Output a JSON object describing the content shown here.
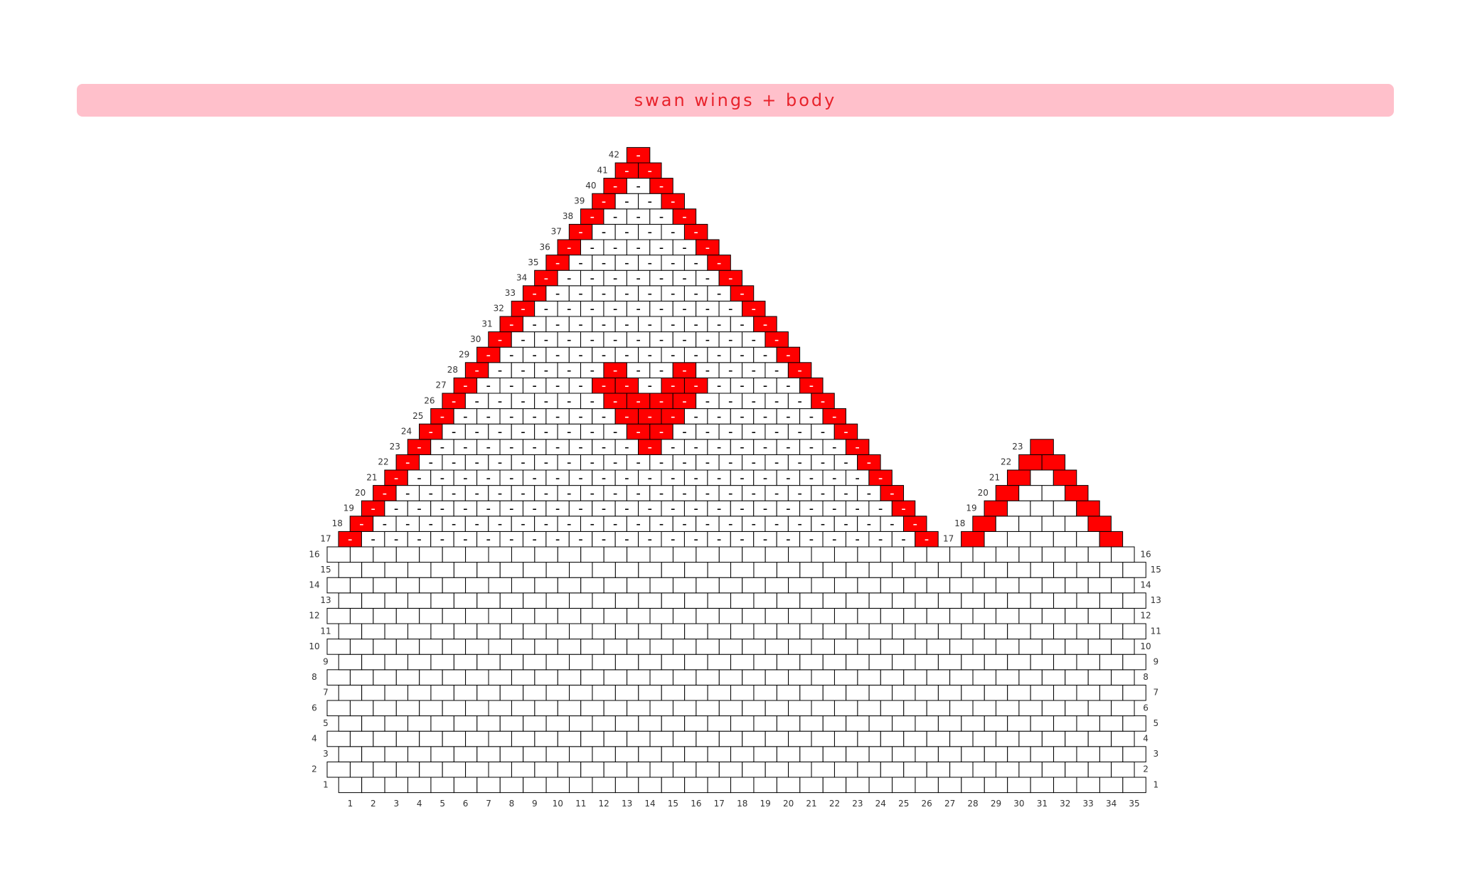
{
  "title": "swan wings + body",
  "colors": {
    "banner_bg": "#ffc0cb",
    "title_text": "#e8222b",
    "bead_red": "#ff0000",
    "bead_white": "#ffffff",
    "bead_outline": "#000000",
    "mark_on_white": "#000000",
    "mark_on_red": "#ffffff"
  },
  "bead_mark": "–",
  "body": {
    "rows": 16,
    "columns": 35,
    "column_labels": [
      "1",
      "2",
      "3",
      "4",
      "5",
      "6",
      "7",
      "8",
      "9",
      "10",
      "11",
      "12",
      "13",
      "14",
      "15",
      "16",
      "17",
      "18",
      "19",
      "20",
      "21",
      "22",
      "23",
      "24",
      "25",
      "26",
      "27",
      "28",
      "29",
      "30",
      "31",
      "32",
      "33",
      "34",
      "35"
    ]
  },
  "wing": {
    "rows": [
      {
        "row": 17,
        "beads": 26,
        "red": [
          1,
          26
        ]
      },
      {
        "row": 18,
        "beads": 25,
        "red": [
          1,
          25
        ]
      },
      {
        "row": 19,
        "beads": 24,
        "red": [
          1,
          24
        ]
      },
      {
        "row": 20,
        "beads": 23,
        "red": [
          1,
          23
        ]
      },
      {
        "row": 21,
        "beads": 22,
        "red": [
          1,
          22
        ]
      },
      {
        "row": 22,
        "beads": 21,
        "red": [
          1,
          21
        ]
      },
      {
        "row": 23,
        "beads": 20,
        "red": [
          1,
          11,
          20
        ]
      },
      {
        "row": 24,
        "beads": 19,
        "red": [
          1,
          10,
          11,
          19
        ]
      },
      {
        "row": 25,
        "beads": 18,
        "red": [
          1,
          9,
          10,
          11,
          18
        ]
      },
      {
        "row": 26,
        "beads": 17,
        "red": [
          1,
          8,
          9,
          10,
          11,
          17
        ]
      },
      {
        "row": 27,
        "beads": 16,
        "red": [
          1,
          7,
          8,
          10,
          11,
          16
        ]
      },
      {
        "row": 28,
        "beads": 15,
        "red": [
          1,
          7,
          10,
          15
        ]
      },
      {
        "row": 29,
        "beads": 14,
        "red": [
          1,
          14
        ]
      },
      {
        "row": 30,
        "beads": 13,
        "red": [
          1,
          13
        ]
      },
      {
        "row": 31,
        "beads": 12,
        "red": [
          1,
          12
        ]
      },
      {
        "row": 32,
        "beads": 11,
        "red": [
          1,
          11
        ]
      },
      {
        "row": 33,
        "beads": 10,
        "red": [
          1,
          10
        ]
      },
      {
        "row": 34,
        "beads": 9,
        "red": [
          1,
          9
        ]
      },
      {
        "row": 35,
        "beads": 8,
        "red": [
          1,
          8
        ]
      },
      {
        "row": 36,
        "beads": 7,
        "red": [
          1,
          7
        ]
      },
      {
        "row": 37,
        "beads": 6,
        "red": [
          1,
          6
        ]
      },
      {
        "row": 38,
        "beads": 5,
        "red": [
          1,
          5
        ]
      },
      {
        "row": 39,
        "beads": 4,
        "red": [
          1,
          4
        ]
      },
      {
        "row": 40,
        "beads": 3,
        "red": [
          1,
          3
        ]
      },
      {
        "row": 41,
        "beads": 2,
        "red": [
          1,
          2
        ]
      },
      {
        "row": 42,
        "beads": 1,
        "red": [
          1
        ]
      }
    ]
  },
  "small_wing": {
    "rows": [
      {
        "row": 17,
        "beads": 7,
        "red": [
          1,
          7
        ]
      },
      {
        "row": 18,
        "beads": 6,
        "red": [
          1,
          6
        ]
      },
      {
        "row": 19,
        "beads": 5,
        "red": [
          1,
          5
        ]
      },
      {
        "row": 20,
        "beads": 4,
        "red": [
          1,
          4
        ]
      },
      {
        "row": 21,
        "beads": 3,
        "red": [
          1,
          3
        ]
      },
      {
        "row": 22,
        "beads": 2,
        "red": [
          1,
          2
        ]
      },
      {
        "row": 23,
        "beads": 1,
        "red": [
          1
        ]
      }
    ]
  }
}
